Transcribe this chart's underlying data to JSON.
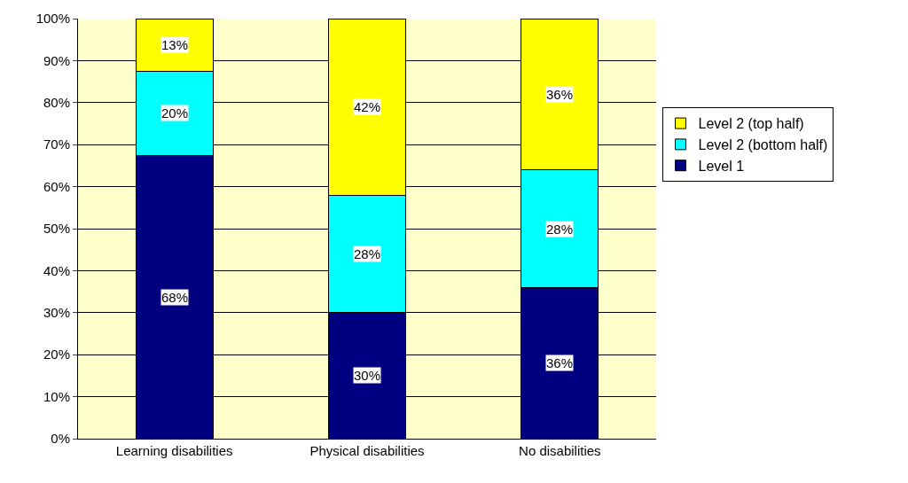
{
  "chart_data": {
    "type": "bar",
    "stacked": true,
    "categories": [
      "Learning disabilities",
      "Physical disabilities",
      "No disabilities"
    ],
    "series": [
      {
        "name": "Level 1",
        "color": "#000080",
        "values": [
          67.5,
          30,
          36
        ],
        "value_labels": [
          "68%",
          "30%",
          "36%"
        ]
      },
      {
        "name": "Level 2 (bottom half)",
        "color": "#00ffff",
        "values": [
          20,
          28,
          28
        ],
        "value_labels": [
          "20%",
          "28%",
          "28%"
        ]
      },
      {
        "name": "Level 2 (top half)",
        "color": "#ffff00",
        "values": [
          12.5,
          42,
          36
        ],
        "value_labels": [
          "13%",
          "42%",
          "36%"
        ]
      }
    ],
    "ylim": [
      0,
      100
    ],
    "yticks": [
      {
        "value": 0,
        "label": "0%"
      },
      {
        "value": 10,
        "label": "10%"
      },
      {
        "value": 20,
        "label": "20%"
      },
      {
        "value": 30,
        "label": "30%"
      },
      {
        "value": 40,
        "label": "40%"
      },
      {
        "value": 50,
        "label": "50%"
      },
      {
        "value": 60,
        "label": "60%"
      },
      {
        "value": 70,
        "label": "70%"
      },
      {
        "value": 80,
        "label": "80%"
      },
      {
        "value": 90,
        "label": "90%"
      },
      {
        "value": 100,
        "label": "100%"
      }
    ],
    "grid": "y",
    "legend": "right"
  }
}
